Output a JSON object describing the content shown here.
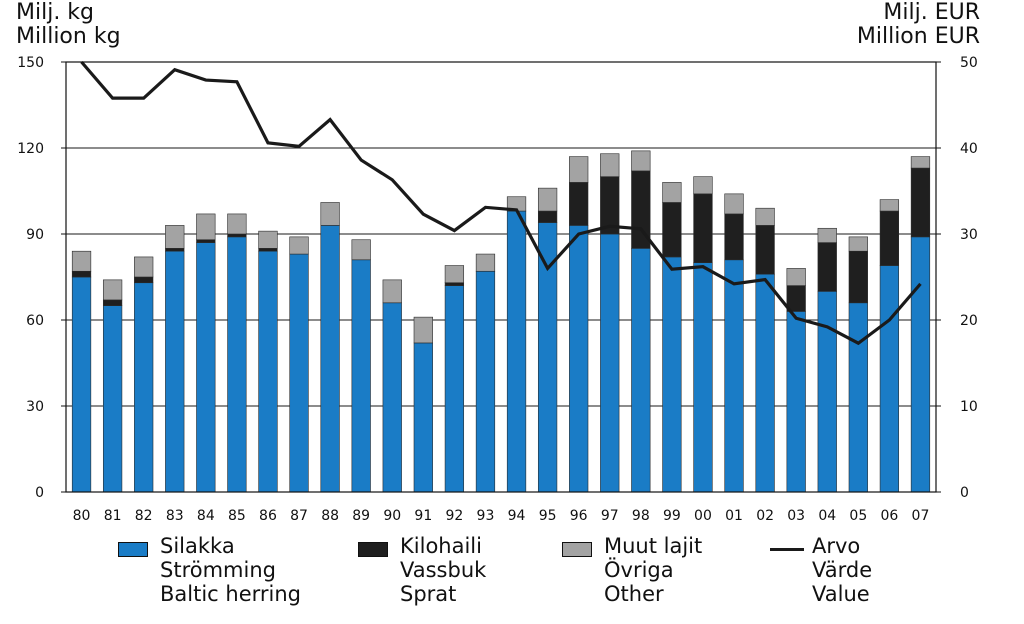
{
  "chart_data": {
    "type": "bar",
    "stacked": true,
    "y_left_label": [
      "Milj. kg",
      "Million kg"
    ],
    "y_right_label": [
      "Milj. EUR",
      "Million EUR"
    ],
    "ylim_left": [
      0,
      150
    ],
    "ylim_right": [
      0,
      50
    ],
    "yticks_left": [
      "0",
      "30",
      "60",
      "90",
      "120",
      "150"
    ],
    "yticks_right": [
      "0",
      "10",
      "20",
      "30",
      "40",
      "50"
    ],
    "categories": [
      "80",
      "81",
      "82",
      "83",
      "84",
      "85",
      "86",
      "87",
      "88",
      "89",
      "90",
      "91",
      "92",
      "93",
      "94",
      "95",
      "96",
      "97",
      "98",
      "99",
      "00",
      "01",
      "02",
      "03",
      "04",
      "05",
      "06",
      "07"
    ],
    "series": [
      {
        "name": "Silakka / Strömming / Baltic herring",
        "color": "#1a7cc6",
        "axis": "left",
        "values": [
          75,
          65,
          73,
          84,
          87,
          89,
          84,
          83,
          93,
          81,
          66,
          52,
          72,
          77,
          98,
          94,
          93,
          90,
          85,
          82,
          80,
          81,
          76,
          63,
          70,
          66,
          79,
          89
        ]
      },
      {
        "name": "Kilohaili / Vassbuk / Sprat",
        "color": "#1f1f1f",
        "axis": "left",
        "values": [
          2,
          2,
          2,
          1,
          1,
          1,
          1,
          0,
          0,
          0,
          0,
          0,
          1,
          0,
          0,
          4,
          15,
          20,
          27,
          19,
          24,
          16,
          17,
          9,
          17,
          18,
          19,
          24
        ]
      },
      {
        "name": "Muut lajit / Övriga / Other",
        "color": "#a3a3a3",
        "axis": "left",
        "values": [
          7,
          7,
          7,
          8,
          9,
          7,
          6,
          6,
          8,
          7,
          8,
          9,
          6,
          6,
          5,
          8,
          9,
          8,
          7,
          7,
          6,
          7,
          6,
          6,
          5,
          5,
          4,
          4
        ]
      },
      {
        "name": "Arvo / Värde / Value",
        "type": "line",
        "color": "#1a1a1a",
        "axis": "right",
        "values": [
          50,
          45.8,
          45.8,
          49.1,
          47.9,
          47.7,
          40.6,
          40.2,
          43.3,
          38.6,
          36.3,
          32.3,
          30.4,
          33.1,
          32.8,
          26.0,
          30.0,
          30.9,
          30.6,
          25.9,
          26.2,
          24.2,
          24.7,
          20.2,
          19.2,
          17.3,
          20.0,
          24.2
        ]
      }
    ],
    "legend": {
      "position": "bottom",
      "items": [
        {
          "lines": [
            "Silakka",
            "Strömming",
            "Baltic herring"
          ],
          "swatch": "bar",
          "color": "#1a7cc6"
        },
        {
          "lines": [
            "Kilohaili",
            "Vassbuk",
            "Sprat"
          ],
          "swatch": "bar",
          "color": "#1f1f1f"
        },
        {
          "lines": [
            "Muut lajit",
            "Övriga",
            "Other"
          ],
          "swatch": "bar",
          "color": "#a3a3a3"
        },
        {
          "lines": [
            "Arvo",
            "Värde",
            "Value"
          ],
          "swatch": "line",
          "color": "#1a1a1a"
        }
      ]
    },
    "grid": true
  }
}
